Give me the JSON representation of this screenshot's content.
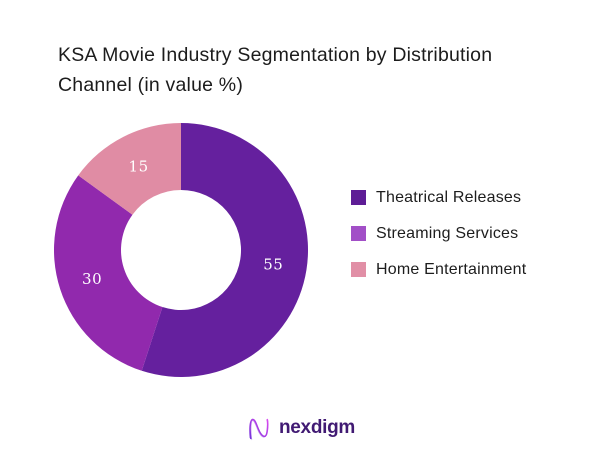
{
  "page": {
    "background": "#FFFFFF"
  },
  "title": {
    "full": "KSA Movie Industry Segmentation by Distribution Channel (in value %)",
    "line1": "KSA Movie Industry Segmentation by Distribution",
    "line2": "Channel (in value %)",
    "color": "#1C1C1C"
  },
  "chart_data": {
    "type": "pie",
    "subtype": "donut",
    "title": "KSA Movie Industry Segmentation by Distribution Channel (in value %)",
    "categories": [
      "Theatrical Releases",
      "Streaming Services",
      "Home Entertainment"
    ],
    "values": [
      55,
      30,
      15
    ],
    "data_labels": [
      "55",
      "30",
      "15"
    ],
    "unit": "% of value",
    "colors": [
      "#65209E",
      "#9129AD",
      "#E08CA4"
    ],
    "legend_swatch_colors": [
      "#5E1D96",
      "#A24FC7",
      "#E18FA6"
    ],
    "label_color": "#FFFFFF",
    "start_angle_deg": 0,
    "direction": "clockwise",
    "inner_radius_ratio": 0.47,
    "legend_position": "right",
    "grid": false
  },
  "footer": {
    "logo_text": "nexdigm",
    "logo_icon": "nexdigm-wave-n-icon",
    "logo_text_color": "#411A73",
    "logo_gradient_start": "#6D28D9",
    "logo_gradient_end": "#D946EF"
  }
}
